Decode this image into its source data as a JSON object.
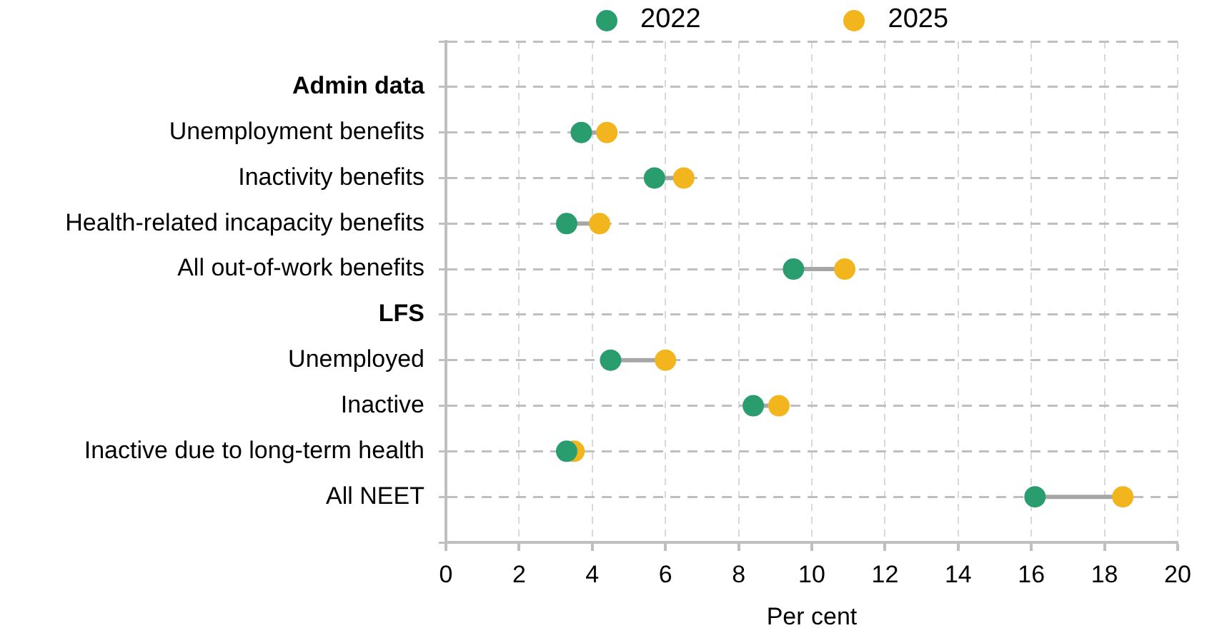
{
  "chart_data": {
    "type": "scatter",
    "orientation": "horizontal",
    "categories": [
      "Admin data",
      "Unemployment benefits",
      "Inactivity benefits",
      "Health-related incapacity benefits",
      "All out-of-work benefits",
      "LFS",
      "Unemployed",
      "Inactive",
      "Inactive due to long-term health",
      "All NEET"
    ],
    "series": [
      {
        "name": "2022",
        "color": "#2a9d6f",
        "values": [
          null,
          3.7,
          5.7,
          3.3,
          9.5,
          null,
          4.5,
          8.4,
          3.3,
          16.1
        ]
      },
      {
        "name": "2025",
        "color": "#f2b51d",
        "values": [
          null,
          4.4,
          6.5,
          4.2,
          10.9,
          null,
          6.0,
          9.1,
          3.5,
          18.5
        ]
      }
    ],
    "xlabel": "Per cent",
    "xlim": [
      0,
      20
    ],
    "xticks": [
      0,
      2,
      4,
      6,
      8,
      10,
      12,
      14,
      16,
      18,
      20
    ],
    "grid": true,
    "legend": "top",
    "marker": "circle"
  }
}
